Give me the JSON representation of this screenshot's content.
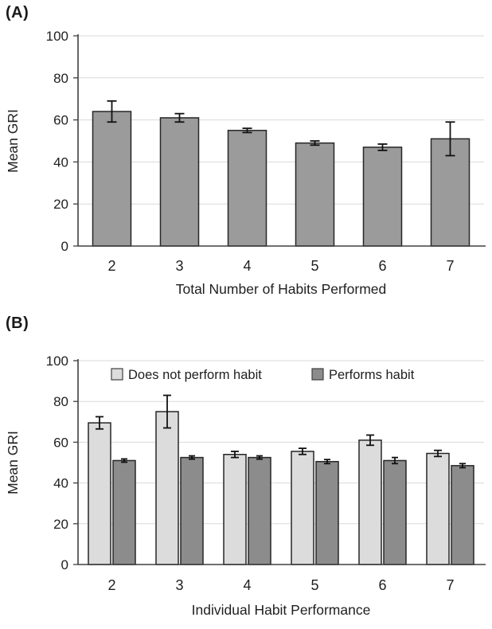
{
  "colors": {
    "background": "#ffffff",
    "text": "#1f1f1f",
    "axis": "#404040",
    "gridline": "#d9d9d9",
    "error_bar": "#111111",
    "panel_a_bar": "#9b9b9b",
    "panel_b_light_bar": "#dcdcdc",
    "panel_b_dark_bar": "#8c8c8c",
    "bar_outline": "#262626"
  },
  "chart_data": [
    {
      "type": "bar",
      "panel_label": "(A)",
      "categories": [
        "2",
        "3",
        "4",
        "5",
        "6",
        "7"
      ],
      "series": [
        {
          "name": "Mean GRI",
          "values": [
            64,
            61,
            55,
            49,
            47,
            51
          ],
          "errors": [
            5,
            2,
            1,
            1,
            1.5,
            8
          ],
          "color": "#9b9b9b"
        }
      ],
      "xlabel": "Total Number of Habits Performed",
      "ylabel": "Mean GRI",
      "ylim": [
        0,
        100
      ],
      "yticks": [
        0,
        20,
        40,
        60,
        80,
        100
      ],
      "grid": true,
      "legend": false
    },
    {
      "type": "bar",
      "panel_label": "(B)",
      "categories": [
        "2",
        "3",
        "4",
        "5",
        "6",
        "7"
      ],
      "series": [
        {
          "name": "Does not perform habit",
          "values": [
            69.5,
            75,
            54,
            55.5,
            61,
            54.5
          ],
          "errors": [
            3,
            8,
            1.5,
            1.5,
            2.5,
            1.5
          ],
          "color": "#dcdcdc"
        },
        {
          "name": "Performs habit",
          "values": [
            51,
            52.5,
            52.5,
            50.5,
            51,
            48.5
          ],
          "errors": [
            0.8,
            0.8,
            0.8,
            1,
            1.5,
            1
          ],
          "color": "#8c8c8c"
        }
      ],
      "xlabel": "Individual Habit Performance",
      "ylabel": "Mean GRI",
      "ylim": [
        0,
        100
      ],
      "yticks": [
        0,
        20,
        40,
        60,
        80,
        100
      ],
      "grid": true,
      "legend": true,
      "legend_position": "top-inside"
    }
  ]
}
